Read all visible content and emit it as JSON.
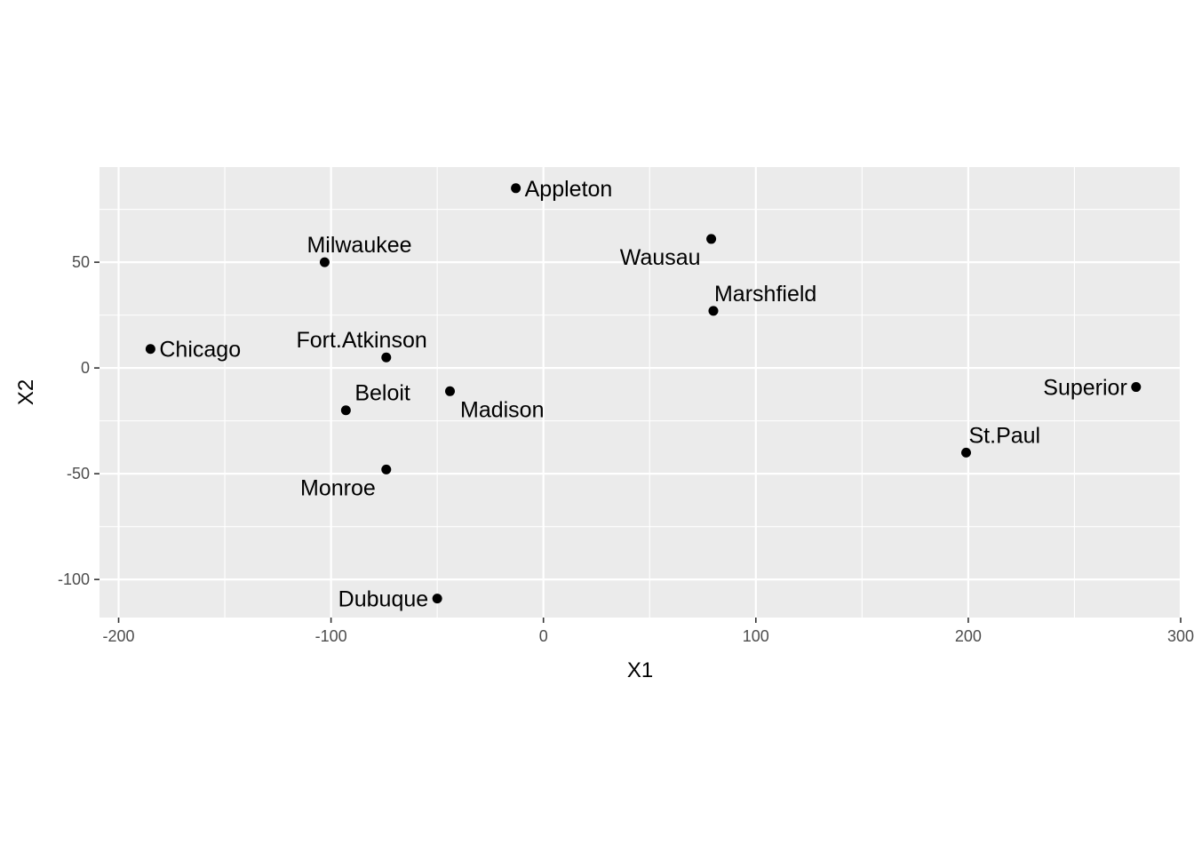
{
  "chart_data": {
    "type": "scatter",
    "xlabel": "X1",
    "ylabel": "X2",
    "xlim": [
      -209,
      300
    ],
    "ylim": [
      -118,
      95
    ],
    "x_ticks": [
      -200,
      -100,
      0,
      100,
      200,
      300
    ],
    "x_tick_labels": [
      "-200",
      "-100",
      "0",
      "100",
      "200",
      "300"
    ],
    "y_ticks": [
      -100,
      -50,
      0,
      50
    ],
    "y_tick_labels": [
      "-100",
      "-50",
      "0",
      "50"
    ],
    "grid": true,
    "colors": {
      "panel_background": "#ebebeb",
      "grid_line": "#ffffff",
      "point": "#000000",
      "tick_label": "#4d4d4d",
      "tick_mark": "#333333"
    },
    "points": [
      {
        "label": "Appleton",
        "x": -13,
        "y": 85,
        "label_side": "right"
      },
      {
        "label": "Wausau",
        "x": 79,
        "y": 61,
        "label_side": "below-left"
      },
      {
        "label": "Milwaukee",
        "x": -103,
        "y": 50,
        "label_side": "above-right"
      },
      {
        "label": "Marshfield",
        "x": 80,
        "y": 27,
        "label_side": "above-right"
      },
      {
        "label": "Chicago",
        "x": -185,
        "y": 9,
        "label_side": "right"
      },
      {
        "label": "Fort.Atkinson",
        "x": -74,
        "y": 5,
        "label_side": "above-left"
      },
      {
        "label": "Madison",
        "x": -44,
        "y": -11,
        "label_side": "below-left"
      },
      {
        "label": "Beloit",
        "x": -93,
        "y": -20,
        "label_side": "above-right"
      },
      {
        "label": "Superior",
        "x": 279,
        "y": -9,
        "label_side": "left"
      },
      {
        "label": "St.Paul",
        "x": 199,
        "y": -40,
        "label_side": "above-right"
      },
      {
        "label": "Monroe",
        "x": -74,
        "y": -48,
        "label_side": "below-left"
      },
      {
        "label": "Dubuque",
        "x": -50,
        "y": -109,
        "label_side": "left"
      }
    ]
  }
}
